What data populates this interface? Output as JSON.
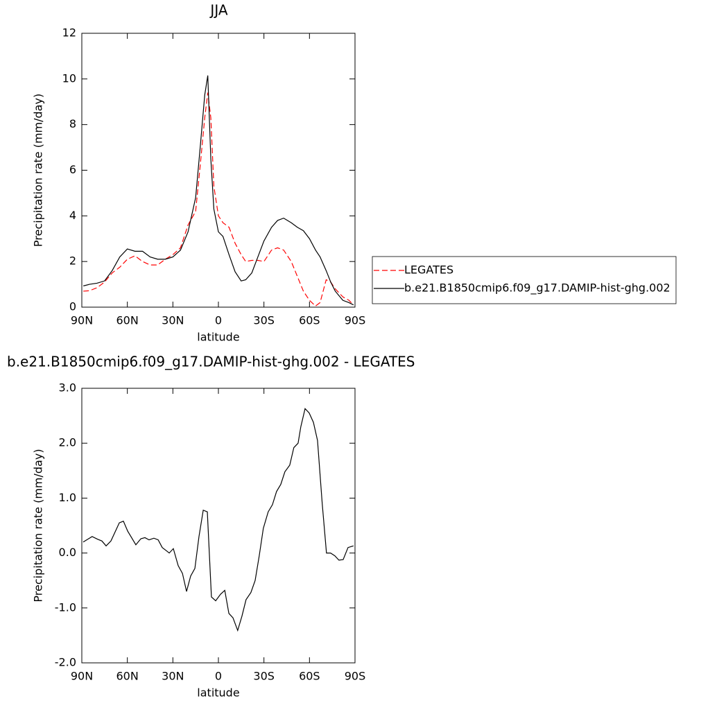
{
  "chart_data": [
    {
      "type": "line",
      "title": "JJA",
      "x_label": "latitude",
      "y_label": "Precipitation rate (mm/day)",
      "x": [
        89,
        85,
        80,
        75,
        70,
        65,
        60,
        55,
        50,
        45,
        40,
        35,
        30,
        25,
        20,
        15,
        12,
        9,
        7,
        5,
        3,
        0,
        -3,
        -7,
        -11,
        -15,
        -18,
        -22,
        -26,
        -30,
        -35,
        -39,
        -43,
        -48,
        -52,
        -56,
        -60,
        -64,
        -67,
        -71,
        -74,
        -77,
        -82,
        -86,
        -89
      ],
      "series": [
        {
          "name": "LEGATES",
          "color": "#ff0000",
          "dash": true,
          "values": [
            0.7,
            0.72,
            0.85,
            1.1,
            1.5,
            1.75,
            2.1,
            2.25,
            2.0,
            1.85,
            1.85,
            2.1,
            2.3,
            2.6,
            3.6,
            4.2,
            6.2,
            8.3,
            9.4,
            8.3,
            5.3,
            4.0,
            3.7,
            3.5,
            2.8,
            2.3,
            2.0,
            2.05,
            2.05,
            2.0,
            2.5,
            2.6,
            2.5,
            2.0,
            1.35,
            0.7,
            0.3,
            0.05,
            0.2,
            1.2,
            1.1,
            0.8,
            0.45,
            0.3,
            0.1
          ]
        },
        {
          "name": "b.e21.B1850cmip6.f09_g17.DAMIP-hist-ghg.002",
          "color": "#000000",
          "dash": false,
          "values": [
            0.93,
            1.0,
            1.05,
            1.15,
            1.6,
            2.2,
            2.55,
            2.45,
            2.45,
            2.2,
            2.1,
            2.1,
            2.2,
            2.5,
            3.3,
            4.8,
            7.0,
            9.3,
            10.15,
            6.5,
            4.3,
            3.3,
            3.1,
            2.3,
            1.55,
            1.15,
            1.2,
            1.5,
            2.2,
            2.9,
            3.5,
            3.8,
            3.9,
            3.7,
            3.5,
            3.35,
            3.0,
            2.5,
            2.2,
            1.6,
            1.1,
            0.7,
            0.3,
            0.2,
            0.1
          ]
        }
      ],
      "xlim": [
        90,
        -90
      ],
      "xticks": [
        {
          "value": 90,
          "label": "90N"
        },
        {
          "value": 60,
          "label": "60N"
        },
        {
          "value": 30,
          "label": "30N"
        },
        0,
        {
          "value": -30,
          "label": "30S"
        },
        {
          "value": -60,
          "label": "60S"
        },
        {
          "value": -90,
          "label": "90S"
        }
      ],
      "ylim": [
        0,
        12
      ],
      "yticks": [
        0,
        2,
        4,
        6,
        8,
        10,
        12
      ],
      "legend": "right"
    },
    {
      "type": "line",
      "title": "b.e21.B1850cmip6.f09_g17.DAMIP-hist-ghg.002 - LEGATES",
      "x_label": "latitude",
      "y_label": "Precipitation rate (mm/day)",
      "x": [
        89.1,
        83.2,
        79.5,
        76.8,
        74.0,
        70.8,
        65.3,
        62.6,
        59.8,
        54.4,
        51.1,
        48.4,
        45.7,
        42.5,
        39.7,
        37.0,
        34.2,
        32.4,
        29.7,
        26.5,
        23.7,
        21.0,
        18.3,
        15.5,
        12.8,
        10.0,
        7.3,
        4.6,
        1.8,
        -1.4,
        -4.2,
        -6.9,
        -9.6,
        -12.7,
        -15.5,
        -18.2,
        -21.4,
        -24.2,
        -26.9,
        -29.6,
        -32.8,
        -35.6,
        -38.3,
        -41.1,
        -43.8,
        -47.0,
        -49.7,
        -52.5,
        -54.3,
        -57.1,
        -59.8,
        -62.6,
        -65.3,
        -68.4,
        -71.2,
        -73.9,
        -76.7,
        -79.4,
        -82.2,
        -85.4,
        -89.0
      ],
      "color": "#000000",
      "values": [
        0.2,
        0.3,
        0.25,
        0.22,
        0.13,
        0.22,
        0.55,
        0.58,
        0.4,
        0.15,
        0.26,
        0.28,
        0.24,
        0.27,
        0.24,
        0.1,
        0.04,
        0.0,
        0.08,
        -0.23,
        -0.37,
        -0.7,
        -0.42,
        -0.28,
        0.3,
        0.78,
        0.75,
        -0.8,
        -0.87,
        -0.75,
        -0.68,
        -1.1,
        -1.18,
        -1.41,
        -1.15,
        -0.85,
        -0.72,
        -0.5,
        -0.05,
        0.45,
        0.75,
        0.88,
        1.12,
        1.25,
        1.48,
        1.6,
        1.92,
        2.0,
        2.3,
        2.63,
        2.55,
        2.38,
        2.05,
        0.9,
        0.0,
        0.0,
        -0.05,
        -0.13,
        -0.12,
        0.1,
        0.13
      ],
      "xlim": [
        90,
        -90
      ],
      "xticks": [
        {
          "value": 90,
          "label": "90N"
        },
        {
          "value": 60,
          "label": "60N"
        },
        {
          "value": 30,
          "label": "30N"
        },
        0,
        {
          "value": -30,
          "label": "30S"
        },
        {
          "value": -60,
          "label": "60S"
        },
        {
          "value": -90,
          "label": "90S"
        }
      ],
      "ylim": [
        -2,
        3
      ],
      "yticks": [
        {
          "value": -2,
          "label": "-2.0"
        },
        {
          "value": -1,
          "label": "-1.0"
        },
        {
          "value": 0,
          "label": "0.0"
        },
        {
          "value": 1,
          "label": "1.0"
        },
        {
          "value": 2,
          "label": "2.0"
        },
        {
          "value": 3,
          "label": "3.0"
        }
      ]
    }
  ]
}
